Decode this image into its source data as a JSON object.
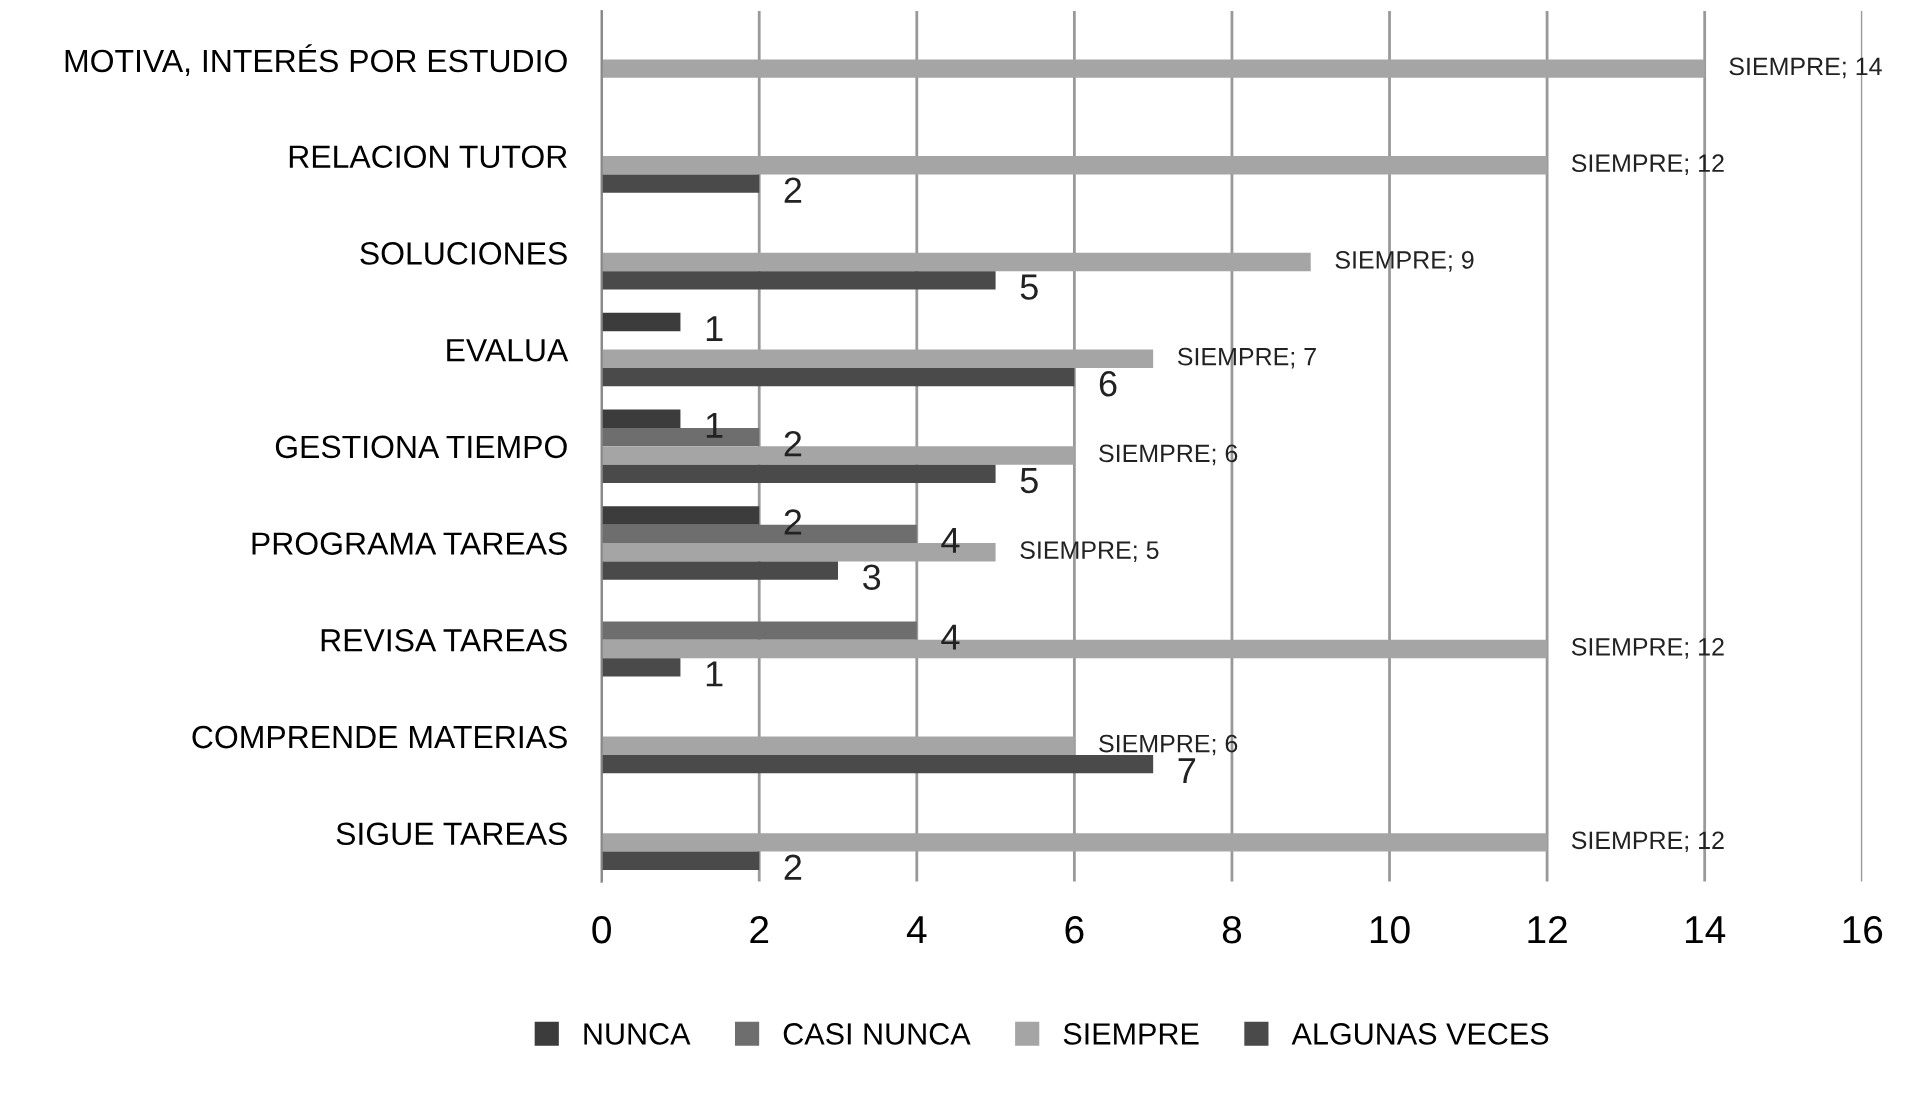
{
  "chart_data": {
    "type": "bar",
    "orientation": "horizontal",
    "categories": [
      "MOTIVA, INTERÉS POR ESTUDIO",
      "RELACION TUTOR",
      "SOLUCIONES",
      "EVALUA",
      "GESTIONA TIEMPO",
      "PROGRAMA TAREAS",
      "REVISA TAREAS",
      "COMPRENDE MATERIAS",
      "SIGUE TAREAS"
    ],
    "series": [
      {
        "name": "NUNCA",
        "color": "#3c3c3c",
        "values": [
          null,
          null,
          null,
          1,
          1,
          2,
          null,
          null,
          null
        ],
        "value_labels": [
          null,
          null,
          null,
          "1",
          "1",
          "2",
          null,
          null,
          null
        ]
      },
      {
        "name": "CASI NUNCA",
        "color": "#6e6e6e",
        "values": [
          null,
          null,
          null,
          null,
          2,
          4,
          4,
          null,
          null
        ],
        "value_labels": [
          null,
          null,
          null,
          null,
          "2",
          "4",
          "4",
          null,
          null
        ]
      },
      {
        "name": "SIEMPRE",
        "color": "#a5a5a5",
        "values": [
          14,
          12,
          9,
          7,
          6,
          5,
          12,
          6,
          12
        ],
        "value_labels": [
          "SIEMPRE; 14",
          "SIEMPRE; 12",
          "SIEMPRE; 9",
          "SIEMPRE; 7",
          "SIEMPRE; 6",
          "SIEMPRE; 5",
          "SIEMPRE; 12",
          "SIEMPRE; 6",
          "SIEMPRE; 12"
        ]
      },
      {
        "name": "ALGUNAS VECES",
        "color": "#4a4a4a",
        "values": [
          null,
          2,
          5,
          6,
          5,
          3,
          1,
          7,
          2
        ],
        "value_labels": [
          null,
          "2",
          "5",
          "6",
          "5",
          "3",
          "1",
          "7",
          "2"
        ]
      }
    ],
    "xlim": [
      0,
      16
    ],
    "xticks": [
      0,
      2,
      4,
      6,
      8,
      10,
      12,
      14,
      16
    ],
    "grid": "x",
    "legend": "bottom"
  }
}
